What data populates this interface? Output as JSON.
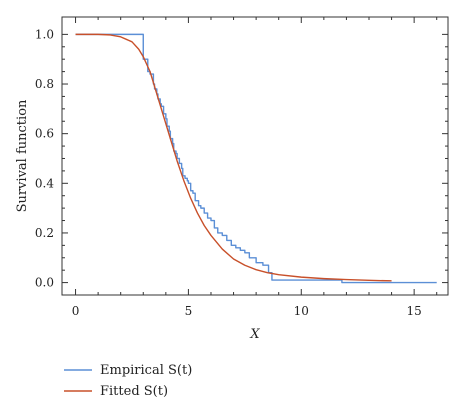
{
  "chart_data": {
    "type": "line",
    "title": "",
    "xlabel": "X",
    "ylabel": "Survival function",
    "xlim": [
      -0.6,
      16.5
    ],
    "ylim": [
      -0.05,
      1.07
    ],
    "x_ticks": [
      0,
      5,
      10,
      15
    ],
    "y_ticks": [
      0.0,
      0.2,
      0.4,
      0.6,
      0.8,
      1.0
    ],
    "x_tick_labels": [
      "0",
      "5",
      "10",
      "15"
    ],
    "y_tick_labels": [
      "0.0",
      "0.2",
      "0.4",
      "0.6",
      "0.8",
      "1.0"
    ],
    "grid": false,
    "legend_position": "bottom-left, below plot",
    "series": [
      {
        "name": "Empirical S(t)",
        "color": "#5b8fd6",
        "style": "step",
        "x": [
          0,
          2.7,
          3.0,
          3.2,
          3.3,
          3.45,
          3.5,
          3.6,
          3.65,
          3.75,
          3.8,
          3.9,
          4.0,
          4.05,
          4.15,
          4.2,
          4.3,
          4.35,
          4.45,
          4.5,
          4.6,
          4.7,
          4.75,
          4.85,
          4.95,
          5.0,
          5.1,
          5.2,
          5.3,
          5.45,
          5.55,
          5.7,
          5.85,
          6.0,
          6.15,
          6.3,
          6.5,
          6.7,
          6.9,
          7.1,
          7.3,
          7.5,
          7.7,
          8.0,
          8.3,
          8.55,
          8.7,
          11.8,
          16.0
        ],
        "y": [
          1.0,
          1.0,
          0.9,
          0.85,
          0.84,
          0.8,
          0.78,
          0.76,
          0.74,
          0.72,
          0.71,
          0.68,
          0.66,
          0.63,
          0.61,
          0.58,
          0.56,
          0.53,
          0.52,
          0.5,
          0.48,
          0.46,
          0.43,
          0.42,
          0.41,
          0.4,
          0.37,
          0.36,
          0.33,
          0.31,
          0.3,
          0.28,
          0.26,
          0.25,
          0.22,
          0.2,
          0.19,
          0.17,
          0.15,
          0.14,
          0.13,
          0.12,
          0.1,
          0.08,
          0.07,
          0.04,
          0.01,
          0.0,
          0.0
        ]
      },
      {
        "name": "Fitted S(t)",
        "color": "#c8502a",
        "style": "smooth",
        "x": [
          0,
          1,
          1.5,
          2,
          2.5,
          2.8,
          3.0,
          3.3,
          3.6,
          3.9,
          4.2,
          4.5,
          4.8,
          5.1,
          5.4,
          5.7,
          6.0,
          6.5,
          7.0,
          7.5,
          8.0,
          8.5,
          9.0,
          10.0,
          11.0,
          12.0,
          13.0,
          14.0
        ],
        "y": [
          1.0,
          1.0,
          0.998,
          0.99,
          0.97,
          0.94,
          0.91,
          0.85,
          0.76,
          0.67,
          0.58,
          0.49,
          0.41,
          0.34,
          0.28,
          0.23,
          0.19,
          0.135,
          0.095,
          0.07,
          0.052,
          0.04,
          0.032,
          0.022,
          0.016,
          0.012,
          0.009,
          0.007
        ]
      }
    ]
  },
  "legend": {
    "items": [
      {
        "label": "Empirical S(t)",
        "color": "#5b8fd6"
      },
      {
        "label": "Fitted S(t)",
        "color": "#c8502a"
      }
    ]
  }
}
